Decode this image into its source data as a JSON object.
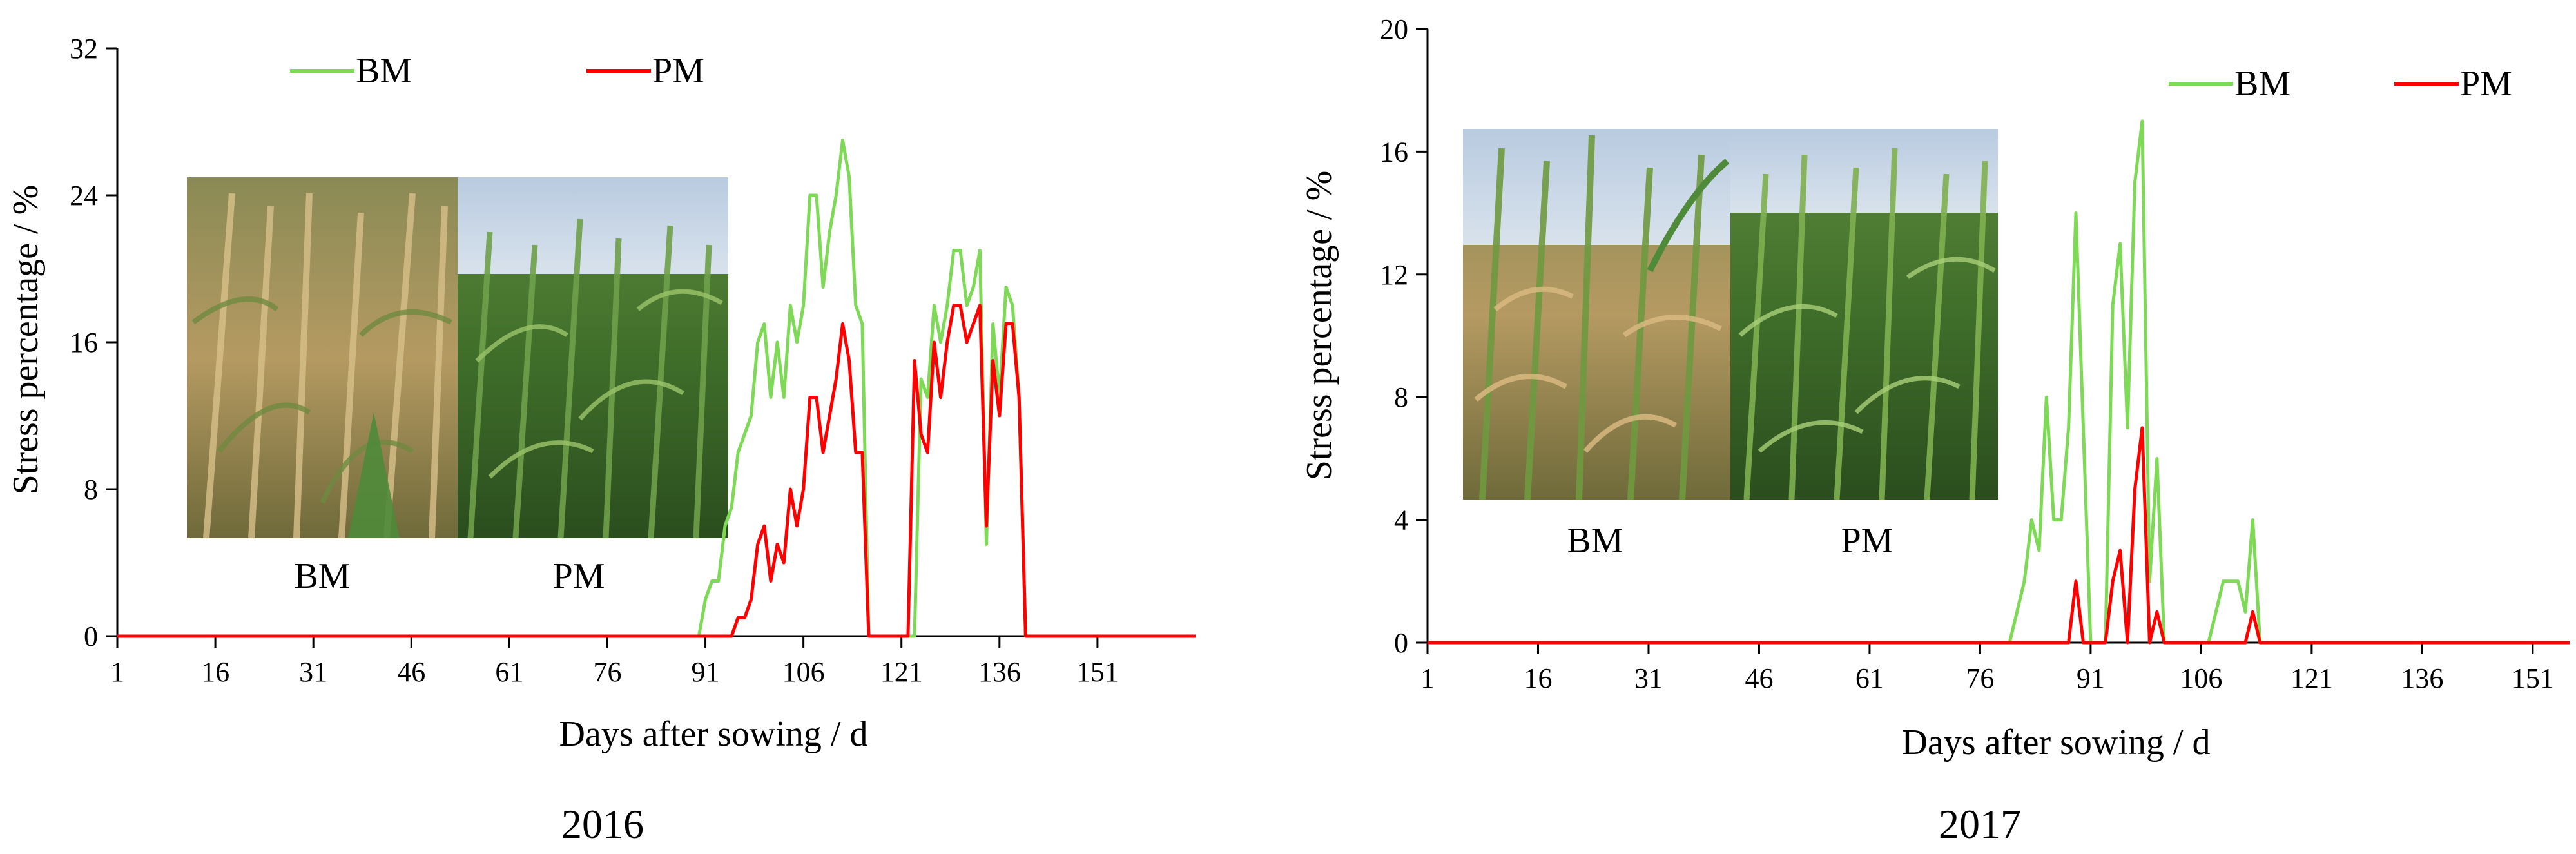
{
  "colors": {
    "bm": "#7ed957",
    "pm": "#ff0000",
    "axis": "#000000"
  },
  "chart_data": [
    {
      "type": "line",
      "title": "2016",
      "xlabel": "Days after sowing / d",
      "ylabel": "Stress percentage / %",
      "xlim": [
        1,
        166
      ],
      "ylim": [
        0,
        32
      ],
      "xticks": [
        "1",
        "16",
        "31",
        "46",
        "61",
        "76",
        "91",
        "106",
        "121",
        "136",
        "151"
      ],
      "yticks": [
        "0",
        "8",
        "16",
        "24",
        "32"
      ],
      "legend": [
        "BM",
        "PM"
      ],
      "photo_labels": [
        "BM",
        "PM"
      ],
      "series": [
        {
          "name": "BM",
          "x": [
            1,
            90,
            91,
            92,
            93,
            94,
            95,
            96,
            97,
            98,
            99,
            100,
            101,
            102,
            103,
            104,
            105,
            106,
            107,
            108,
            109,
            110,
            111,
            112,
            113,
            114,
            115,
            116,
            117,
            118,
            119,
            120,
            121,
            122,
            123,
            124,
            125,
            126,
            127,
            128,
            129,
            130,
            131,
            132,
            133,
            134,
            135,
            136,
            137,
            138,
            139,
            140,
            141,
            142,
            143,
            144,
            166
          ],
          "y": [
            0,
            0,
            2,
            3,
            3,
            6,
            7,
            10,
            11,
            12,
            16,
            17,
            13,
            16,
            13,
            18,
            16,
            18,
            24,
            24,
            19,
            22,
            24,
            27,
            25,
            18,
            17,
            0,
            0,
            0,
            0,
            0,
            0,
            0,
            0,
            14,
            13,
            18,
            16,
            18,
            21,
            21,
            18,
            19,
            21,
            5,
            17,
            13,
            19,
            18,
            13,
            0,
            0,
            0,
            0,
            0,
            0
          ]
        },
        {
          "name": "PM",
          "x": [
            1,
            95,
            96,
            97,
            98,
            99,
            100,
            101,
            102,
            103,
            104,
            105,
            106,
            107,
            108,
            109,
            110,
            111,
            112,
            113,
            114,
            115,
            116,
            117,
            118,
            119,
            120,
            121,
            122,
            123,
            124,
            125,
            126,
            127,
            128,
            129,
            130,
            131,
            132,
            133,
            134,
            135,
            136,
            137,
            138,
            139,
            140,
            141,
            142,
            143,
            144,
            166
          ],
          "y": [
            0,
            0,
            1,
            1,
            2,
            5,
            6,
            3,
            5,
            4,
            8,
            6,
            8,
            13,
            13,
            10,
            12,
            14,
            17,
            15,
            10,
            10,
            0,
            0,
            0,
            0,
            0,
            0,
            0,
            15,
            11,
            10,
            16,
            13,
            16,
            18,
            18,
            16,
            17,
            18,
            6,
            15,
            12,
            17,
            17,
            13,
            0,
            0,
            0,
            0,
            0,
            0
          ]
        }
      ]
    },
    {
      "type": "line",
      "title": "2017",
      "xlabel": "Days after sowing / d",
      "ylabel": "Stress percentage / %",
      "xlim": [
        1,
        156
      ],
      "ylim": [
        0,
        20
      ],
      "xticks": [
        "1",
        "16",
        "31",
        "46",
        "61",
        "76",
        "91",
        "106",
        "121",
        "136",
        "151"
      ],
      "yticks": [
        "0",
        "4",
        "8",
        "12",
        "16",
        "20"
      ],
      "legend": [
        "BM",
        "PM"
      ],
      "photo_labels": [
        "BM",
        "PM"
      ],
      "series": [
        {
          "name": "BM",
          "x": [
            1,
            80,
            81,
            82,
            83,
            84,
            85,
            86,
            87,
            88,
            89,
            90,
            91,
            92,
            93,
            94,
            95,
            96,
            97,
            98,
            99,
            100,
            101,
            102,
            103,
            104,
            105,
            106,
            107,
            108,
            109,
            110,
            111,
            112,
            113,
            114,
            115,
            116,
            156
          ],
          "y": [
            0,
            0,
            1,
            2,
            4,
            3,
            8,
            4,
            4,
            7,
            14,
            7,
            0,
            0,
            0,
            11,
            13,
            7,
            15,
            17,
            2,
            6,
            0,
            0,
            0,
            0,
            0,
            0,
            0,
            1,
            2,
            2,
            2,
            1,
            4,
            0,
            0,
            0,
            0
          ]
        },
        {
          "name": "PM",
          "x": [
            1,
            87,
            88,
            89,
            90,
            91,
            92,
            93,
            94,
            95,
            96,
            97,
            98,
            99,
            100,
            101,
            102,
            110,
            111,
            112,
            113,
            114,
            115,
            156
          ],
          "y": [
            0,
            0,
            0,
            2,
            0,
            0,
            0,
            0,
            2,
            3,
            0,
            5,
            7,
            0,
            1,
            0,
            0,
            0,
            0,
            0,
            1,
            0,
            0,
            0
          ]
        }
      ]
    }
  ]
}
